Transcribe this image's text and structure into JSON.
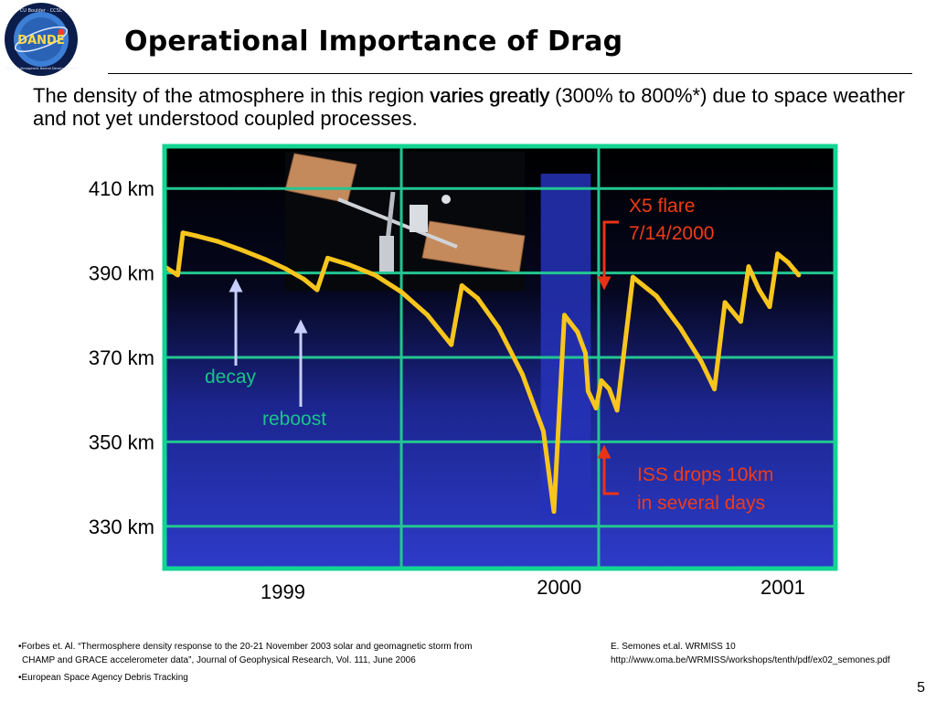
{
  "slide": {
    "title": "Operational Importance of Drag",
    "intro": {
      "before": "The density of the atmosphere in this region ",
      "emphasis": "varies greatly",
      "after": " (300% to 800%*) due to space weather and not yet understood coupled processes."
    },
    "page_number": "5",
    "logo": {
      "top_text": "CU Boulder · CCSC",
      "center_text": "DANDE",
      "bottom_text": "Drag and Atmospheric Neutral Density Explorer"
    }
  },
  "chart_data": {
    "type": "line",
    "title": "",
    "xlabel": "",
    "ylabel": "",
    "xlim": [
      1998.85,
      2001.4
    ],
    "ylim": [
      320,
      420
    ],
    "grid": true,
    "y_ticks": [
      {
        "value": 410,
        "label": "410 km"
      },
      {
        "value": 390,
        "label": "390 km"
      },
      {
        "value": 370,
        "label": "370 km"
      },
      {
        "value": 350,
        "label": "350 km"
      },
      {
        "value": 330,
        "label": "330 km"
      }
    ],
    "x_gridlines": [
      1999.75,
      2000.5,
      2001.5
    ],
    "x_ticks": [
      {
        "value": 1999.3,
        "label": "1999"
      },
      {
        "value": 2000.35,
        "label": "2000"
      },
      {
        "value": 2001.2,
        "label": "2001"
      }
    ],
    "series": [
      {
        "color": "#F7C51C",
        "points": [
          [
            1998.85,
            391.5
          ],
          [
            1998.9,
            389.5
          ],
          [
            1998.92,
            399.5
          ],
          [
            1998.97,
            398.8
          ],
          [
            1999.05,
            397.5
          ],
          [
            1999.14,
            395.5
          ],
          [
            1999.23,
            393.3
          ],
          [
            1999.31,
            391.0
          ],
          [
            1999.38,
            388.5
          ],
          [
            1999.43,
            386.0
          ],
          [
            1999.47,
            393.5
          ],
          [
            1999.55,
            392.0
          ],
          [
            1999.65,
            389.5
          ],
          [
            1999.75,
            385.5
          ],
          [
            1999.85,
            380.0
          ],
          [
            1999.94,
            373.0
          ],
          [
            1999.98,
            387.0
          ],
          [
            2000.04,
            384.0
          ],
          [
            2000.12,
            377.0
          ],
          [
            2000.21,
            366.0
          ],
          [
            2000.29,
            352.5
          ],
          [
            2000.33,
            333.5
          ],
          [
            2000.37,
            380.0
          ],
          [
            2000.42,
            376.0
          ],
          [
            2000.45,
            371.0
          ],
          [
            2000.46,
            362.0
          ],
          [
            2000.49,
            358.0
          ],
          [
            2000.51,
            364.5
          ],
          [
            2000.54,
            362.5
          ],
          [
            2000.57,
            357.5
          ],
          [
            2000.63,
            389.0
          ],
          [
            2000.72,
            384.5
          ],
          [
            2000.81,
            377.0
          ],
          [
            2000.89,
            369.0
          ],
          [
            2000.94,
            362.5
          ],
          [
            2000.98,
            383.0
          ],
          [
            2001.04,
            378.5
          ],
          [
            2001.07,
            391.5
          ],
          [
            2001.11,
            386.0
          ],
          [
            2001.15,
            382.0
          ],
          [
            2001.18,
            394.5
          ],
          [
            2001.22,
            392.5
          ],
          [
            2001.26,
            389.5
          ]
        ]
      }
    ],
    "annotations": {
      "decay": "decay",
      "reboost": "reboost",
      "flare_line1": "X5 flare",
      "flare_line2": "7/14/2000",
      "drop_line1": "ISS drops 10km",
      "drop_line2": "in several days"
    },
    "highlight_band": [
      2000.28,
      2000.47
    ],
    "colors": {
      "curve": "#F7C51C",
      "grid": "#22C690",
      "frame": "#12D493",
      "plot_top": "#000000",
      "plot_bottom": "#2D3BC8",
      "band": "#2633B8",
      "decay_text": "#1AC389",
      "flare_text": "#F03B14",
      "arrow_white": "#C7CEFA",
      "arrow_red": "#EA3316"
    }
  },
  "footnotes": {
    "left_1a": "•Forbes et. Al. “Thermosphere density response to the 20-21 November 2003 solar and geomagnetic storm from",
    "left_1b": "CHAMP and GRACE accelerometer data”, Journal of Geophysical Research, Vol. 111, June 2006",
    "left_2": "•European Space Agency Debris Tracking",
    "right_1": "E. Semones et.al. WRMISS 10",
    "right_2": "http://www.oma.be/WRMISS/workshops/tenth/pdf/ex02_semones.pdf"
  }
}
